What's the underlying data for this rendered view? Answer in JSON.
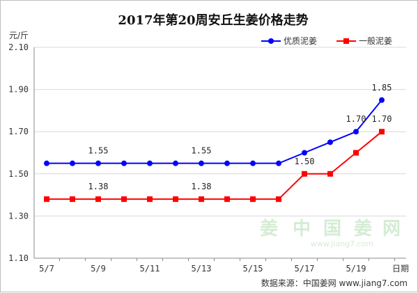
{
  "chart_data": {
    "type": "line",
    "title": "2017年第20周安丘生姜价格走势",
    "ylabel": "元/斤",
    "xlabel": "日期",
    "ylim": [
      1.1,
      2.1
    ],
    "y_ticks": [
      "2.10",
      "1.90",
      "1.70",
      "1.50",
      "1.30",
      "1.10"
    ],
    "y_tick_values": [
      2.1,
      1.9,
      1.7,
      1.5,
      1.3,
      1.1
    ],
    "x": [
      "5/7",
      "5/8",
      "5/9",
      "5/10",
      "5/11",
      "5/12",
      "5/13",
      "5/14",
      "5/15",
      "5/16",
      "5/17",
      "5/18",
      "5/19",
      "5/20"
    ],
    "x_tick_labels": [
      "5/7",
      "5/9",
      "5/11",
      "5/13",
      "5/15",
      "5/17",
      "5/19"
    ],
    "grid": true,
    "legend_position": "top-right",
    "series": [
      {
        "name": "优质泥姜",
        "color": "#0000ff",
        "marker": "circle",
        "values": [
          1.55,
          1.55,
          1.55,
          1.55,
          1.55,
          1.55,
          1.55,
          1.55,
          1.55,
          1.55,
          1.6,
          1.65,
          1.7,
          1.85
        ],
        "labels": [
          {
            "index": 2,
            "text": "1.55"
          },
          {
            "index": 6,
            "text": "1.55"
          },
          {
            "index": 12,
            "text": "1.70"
          },
          {
            "index": 13,
            "text": "1.85"
          }
        ]
      },
      {
        "name": "一般泥姜",
        "color": "#ff0000",
        "marker": "square",
        "values": [
          1.38,
          1.38,
          1.38,
          1.38,
          1.38,
          1.38,
          1.38,
          1.38,
          1.38,
          1.38,
          1.5,
          1.5,
          1.6,
          1.7
        ],
        "labels": [
          {
            "index": 2,
            "text": "1.38"
          },
          {
            "index": 6,
            "text": "1.38"
          },
          {
            "index": 10,
            "text": "1.50"
          },
          {
            "index": 13,
            "text": "1.70"
          }
        ]
      }
    ]
  },
  "watermark": {
    "chars": [
      "姜",
      "中",
      "国",
      "姜",
      "网"
    ],
    "url": "www.jiang7.com"
  },
  "source_text": "数据来源：中国姜网 www.jiang7.com"
}
